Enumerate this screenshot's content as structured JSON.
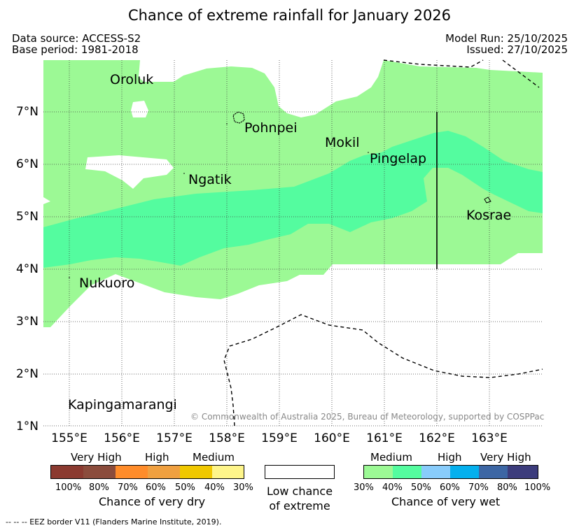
{
  "title": "Chance of extreme rainfall for January 2026",
  "data_source": "Data source: ACCESS-S2",
  "base_period": "Base period: 1981-2018",
  "model_run": "Model Run: 25/10/2025",
  "issued": "Issued: 27/10/2025",
  "map": {
    "lon_range": [
      154.5,
      164.0
    ],
    "lat_range": [
      1.0,
      8.0
    ],
    "lat_labels": [
      "7°N",
      "6°N",
      "5°N",
      "4°N",
      "3°N",
      "2°N",
      "1°N"
    ],
    "lon_labels": [
      "155°E",
      "156°E",
      "157°E",
      "158°E",
      "159°E",
      "160°E",
      "161°E",
      "162°E",
      "163°E"
    ],
    "places": [
      "Oroluk",
      "Pohnpei",
      "Mokil",
      "Pingelap",
      "Ngatik",
      "Kosrae",
      "Nukuoro",
      "Kapingamarangi"
    ],
    "copyright": "© Commonwealth of Australia 2025, Bureau of Meteorology, supported by COSPPac",
    "colors": {
      "wet_medium": "#9cf995",
      "wet_high": "#54fc9f"
    }
  },
  "legend": {
    "dry": {
      "headers": [
        "Very High",
        "High",
        "Medium"
      ],
      "ticks": [
        "100%",
        "80%",
        "70%",
        "60%",
        "50%",
        "40%",
        "30%"
      ],
      "caption": "Chance of very dry",
      "colors": [
        "#8b3a30",
        "#8b4c3c",
        "#ff8c2a",
        "#f0a040",
        "#f0c800",
        "#fef58a"
      ]
    },
    "low": {
      "line1": "Low chance",
      "line2": "of extreme"
    },
    "wet": {
      "headers": [
        "Medium",
        "High",
        "Very High"
      ],
      "ticks": [
        "30%",
        "40%",
        "50%",
        "60%",
        "70%",
        "80%",
        "100%"
      ],
      "caption": "Chance of very wet",
      "colors": [
        "#9cf995",
        "#54fc9f",
        "#88ccfb",
        "#04b0ee",
        "#3c66a4",
        "#3c3c7c"
      ]
    }
  },
  "footnote": "-- -- -- EEZ border V11 (Flanders Marine Institute, 2019)."
}
